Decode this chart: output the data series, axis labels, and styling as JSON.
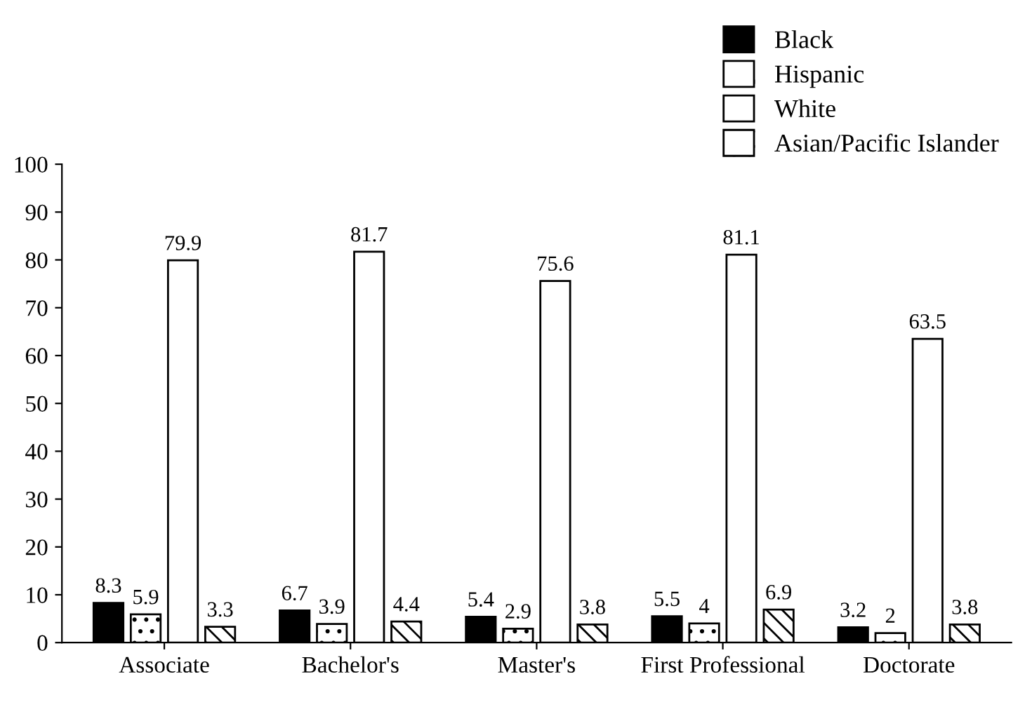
{
  "chart_data": {
    "type": "bar",
    "categories": [
      "Associate",
      "Bachelor's",
      "Master's",
      "First Professional",
      "Doctorate"
    ],
    "series": [
      {
        "name": "Black",
        "color": "#000000",
        "values": [
          8.3,
          6.7,
          5.4,
          5.5,
          3.2
        ]
      },
      {
        "name": "Hispanic",
        "color": "#ffffff",
        "values": [
          5.9,
          3.9,
          2.9,
          4,
          2
        ]
      },
      {
        "name": "White",
        "color": "#ffffff",
        "values": [
          79.9,
          81.7,
          75.6,
          81.1,
          63.5
        ]
      },
      {
        "name": "Asian/Pacific Islander",
        "color": "#ffffff",
        "values": [
          3.3,
          4.4,
          3.8,
          6.9,
          3.8
        ]
      }
    ],
    "ylim": [
      0,
      100
    ],
    "yticks": [
      0,
      10,
      20,
      30,
      40,
      50,
      60,
      70,
      80,
      90,
      100
    ],
    "grid": false,
    "legend": "top right",
    "data_labels": true
  }
}
